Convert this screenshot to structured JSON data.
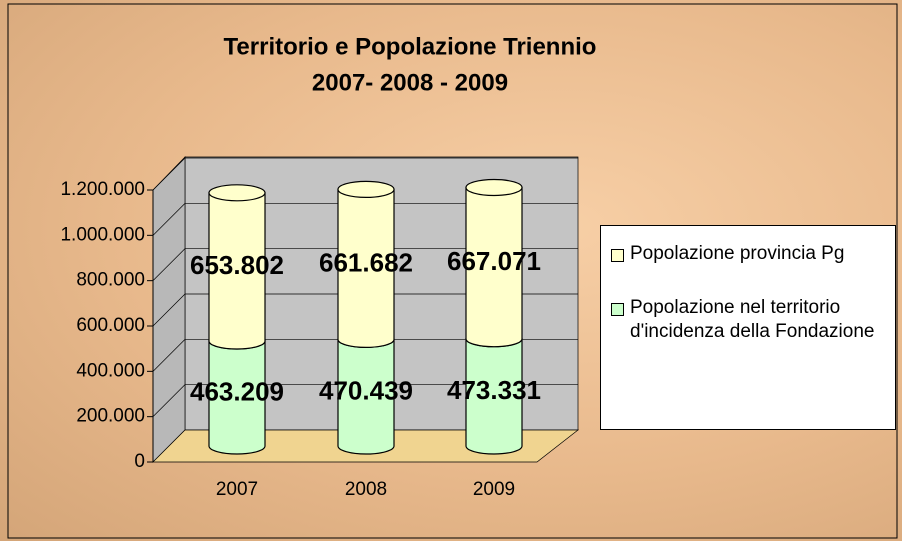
{
  "chart_data": {
    "type": "bar3d_stacked",
    "title": [
      "Territorio e Popolazione Triennio",
      "2007-  2008 - 2009"
    ],
    "categories": [
      "2007",
      "2008",
      "2009"
    ],
    "series": [
      {
        "name": "Popolazione nel territorio d'incidenza della Fondazione",
        "color": "#ccffcc",
        "values": [
          463209,
          470439,
          473331
        ],
        "value_labels": [
          "463.209",
          "470.439",
          "473.331"
        ]
      },
      {
        "name": "Popolazione provincia Pg",
        "color": "#ffffcc",
        "values": [
          653802,
          661682,
          667071
        ],
        "value_labels": [
          "653.802",
          "661.682",
          "667.071"
        ]
      }
    ],
    "ylim": [
      0,
      1200000
    ],
    "yticks": [
      0,
      {
        "value": 200000,
        "label": "200.000"
      },
      {
        "value": 400000,
        "label": "400.000"
      },
      {
        "value": 600000,
        "label": "600.000"
      },
      {
        "value": 800000,
        "label": "800.000"
      },
      {
        "value": 1000000,
        "label": "1.000.000"
      },
      {
        "value": 1200000,
        "label": "1.200.000"
      }
    ],
    "grid": true,
    "legend": "right"
  }
}
